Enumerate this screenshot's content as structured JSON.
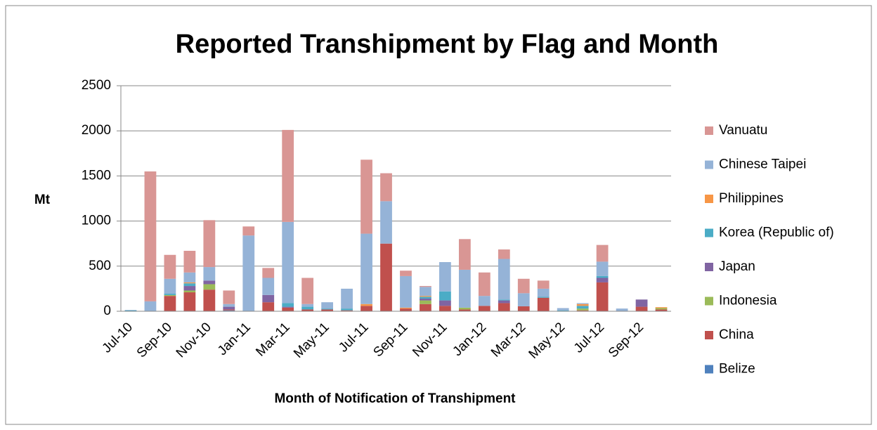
{
  "chart_data": {
    "type": "bar",
    "stacked": true,
    "title": "Reported Transhipment by Flag and Month",
    "x_label": "Month of Notification of Transhipment",
    "y_label": "Mt",
    "categories": [
      "Jul-10",
      null,
      "Sep-10",
      null,
      "Nov-10",
      null,
      "Jan-11",
      null,
      "Mar-11",
      null,
      "May-11",
      null,
      "Jul-11",
      null,
      "Sep-11",
      null,
      "Nov-11",
      null,
      "Jan-12",
      null,
      "Mar-12",
      null,
      "May-12",
      null,
      "Jul-12",
      null,
      "Sep-12",
      null
    ],
    "ylim": [
      0,
      2500
    ],
    "yticks": [
      0,
      500,
      1000,
      1500,
      2000,
      2500
    ],
    "grid": true,
    "legend": "right",
    "series": [
      {
        "name": "Belize",
        "color": "#4f81bd",
        "values": [
          0,
          0,
          0,
          0,
          0,
          10,
          0,
          0,
          0,
          0,
          0,
          0,
          0,
          0,
          0,
          0,
          0,
          0,
          0,
          0,
          0,
          0,
          0,
          0,
          0,
          0,
          0,
          0
        ]
      },
      {
        "name": "China",
        "color": "#c0504d",
        "values": [
          0,
          0,
          170,
          210,
          240,
          10,
          0,
          100,
          40,
          20,
          20,
          10,
          60,
          750,
          30,
          80,
          60,
          20,
          60,
          90,
          55,
          150,
          0,
          10,
          320,
          0,
          50,
          20
        ]
      },
      {
        "name": "Indonesia",
        "color": "#9bbb59",
        "values": [
          0,
          0,
          10,
          20,
          60,
          0,
          0,
          0,
          0,
          0,
          0,
          0,
          0,
          0,
          0,
          40,
          0,
          20,
          0,
          0,
          0,
          0,
          0,
          20,
          0,
          0,
          0,
          15
        ]
      },
      {
        "name": "Japan",
        "color": "#8064a2",
        "values": [
          0,
          0,
          0,
          50,
          40,
          30,
          0,
          80,
          10,
          0,
          0,
          0,
          0,
          0,
          0,
          20,
          60,
          0,
          0,
          30,
          0,
          0,
          0,
          0,
          50,
          0,
          80,
          0
        ]
      },
      {
        "name": "Korea (Republic of)",
        "color": "#4bacc6",
        "values": [
          10,
          0,
          15,
          30,
          0,
          0,
          0,
          0,
          40,
          30,
          10,
          20,
          0,
          0,
          0,
          20,
          100,
          0,
          0,
          10,
          0,
          10,
          10,
          30,
          20,
          0,
          0,
          0
        ]
      },
      {
        "name": "Philippines",
        "color": "#f79646",
        "values": [
          0,
          0,
          0,
          10,
          0,
          0,
          0,
          0,
          0,
          0,
          0,
          0,
          20,
          0,
          10,
          10,
          0,
          0,
          0,
          0,
          0,
          0,
          0,
          20,
          0,
          0,
          0,
          10
        ]
      },
      {
        "name": "Chinese Taipei",
        "color": "#95b3d7",
        "values": [
          5,
          110,
          165,
          110,
          150,
          30,
          840,
          190,
          900,
          30,
          70,
          220,
          780,
          470,
          350,
          100,
          325,
          420,
          110,
          450,
          145,
          90,
          25,
          10,
          160,
          30,
          0,
          0
        ]
      },
      {
        "name": "Vanuatu",
        "color": "#d99694",
        "values": [
          0,
          1440,
          265,
          240,
          520,
          150,
          100,
          110,
          1020,
          290,
          0,
          0,
          820,
          310,
          60,
          10,
          0,
          340,
          260,
          105,
          160,
          90,
          0,
          0,
          185,
          0,
          0,
          0
        ]
      }
    ]
  }
}
